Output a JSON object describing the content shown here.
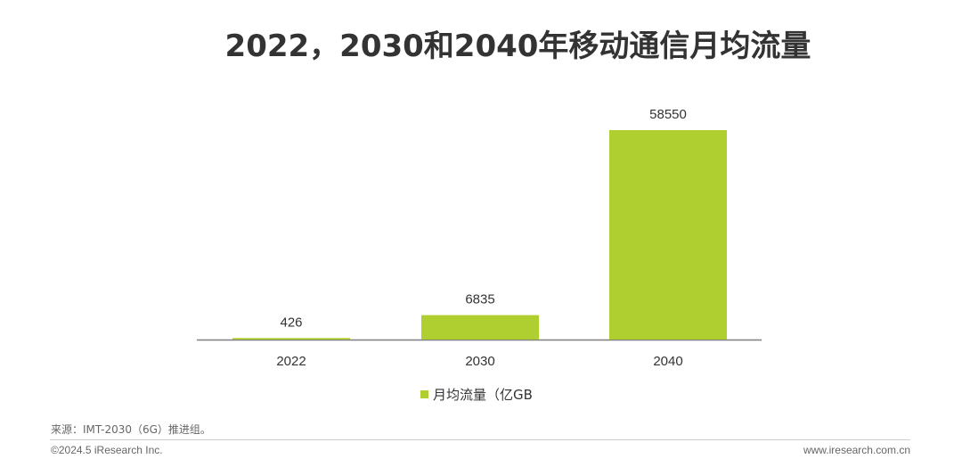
{
  "chart_data": {
    "type": "bar",
    "title": "2022，2030和2040年移动通信月均流量",
    "categories": [
      "2022",
      "2030",
      "2040"
    ],
    "series": [
      {
        "name": "月均流量（亿GB",
        "values": [
          426,
          6835,
          58550
        ]
      }
    ],
    "data_labels": [
      "426",
      "6835",
      "58550"
    ],
    "ylim": [
      0,
      58550
    ],
    "grid": false,
    "legend_position": "bottom",
    "bar_color": "#aecf2f",
    "axis_color": "#7f7f7f"
  },
  "footer": {
    "source": "来源：IMT-2030（6G）推进组。",
    "copyright": "©2024.5 iResearch Inc.",
    "website": "www.iresearch.com.cn"
  }
}
